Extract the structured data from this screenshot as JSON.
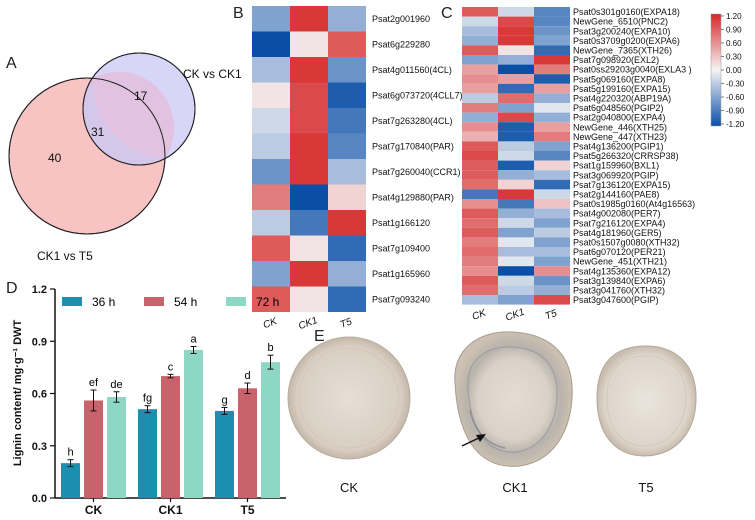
{
  "panels": {
    "A": "A",
    "B": "B",
    "C": "C",
    "D": "D",
    "E": "E"
  },
  "venn": {
    "set_top_label": "CK vs CK1",
    "set_bottom_label": "CK1 vs T5",
    "only_top": "17",
    "overlap": "31",
    "only_bottom": "40",
    "colors": {
      "top": "#c9c8f5",
      "bottom": "#f7c3c3",
      "overlap": "#e1c3e1"
    }
  },
  "heatmap_b": {
    "columns": [
      "CK",
      "CK1",
      "T5"
    ],
    "genes": [
      "Psat2g001960",
      "Psat6g229280",
      "Psat4g011560(4CL)",
      "Psat6g073720(4CLL7)",
      "Psat7g263280(4CL)",
      "Psat7g170840(PAR)",
      "Psat7g260040(CCR1)",
      "Psat4g129880(PAR)",
      "Psat1g166120",
      "Psat7g109400",
      "Psat1g165960",
      "Psat7g093240"
    ],
    "values": [
      [
        -0.6,
        1.1,
        -0.5
      ],
      [
        -1.2,
        0.1,
        0.9
      ],
      [
        -0.4,
        1.1,
        -0.7
      ],
      [
        0.1,
        1.0,
        -1.1
      ],
      [
        -0.2,
        1.0,
        -0.9
      ],
      [
        -0.3,
        1.1,
        -0.8
      ],
      [
        -0.7,
        1.1,
        -0.4
      ],
      [
        0.7,
        -1.2,
        0.2
      ],
      [
        -0.3,
        -0.9,
        1.1
      ],
      [
        0.9,
        0.1,
        -1.0
      ],
      [
        -0.6,
        1.1,
        -0.5
      ],
      [
        0.9,
        0.1,
        -1.0
      ]
    ]
  },
  "heatmap_c": {
    "columns": [
      "CK",
      "CK1",
      "T5"
    ],
    "genes": [
      "Psat0s301g0160(EXPA18)",
      "NewGene_6510(PNC2)",
      "Psat3g200240(EXPA10)",
      "Psat0s3709g0200(EXPA6)",
      "NewGene_7365(XTH26)",
      "Psat7g098920(EXL2)",
      "Psat0ss29203g0040(EXLA3 )",
      "Psat5g069160(EXPA8)",
      "Psat5g199160(EXPA15)",
      "Psat4g220320(ABP19A)",
      "Psat6g048560(PGIP2)",
      "Psat2g040800(EXPA4)",
      "NewGene_446(XTH25)",
      "NewGene_447(XTH23)",
      "Psat4g136200(PGIP1)",
      "Psat5g266320(CRRSP38)",
      "Psat1g159960(BXL1)",
      "Psat3g069920(PGIP)",
      "Psat7g136120(EXPA15)",
      "Psat2g144160(PAE8)",
      "Psat0s1985g0160(At4g16563)",
      "Psat4g002080(PER7)",
      "Psat7g216120(EXPA4)",
      "Psat4g181960(GER5)",
      "Psat0s1507g0080(XTH32)",
      "Psat6g070120(PER21)",
      "NewGene_451(XTH21)",
      "Psat4g135360(EXPA12)",
      "Psat3g139840(EXPA6)",
      "Psat3g041760(XTH32)",
      "Psat3g047600(PGIP)"
    ],
    "values": [
      [
        0.9,
        -0.2,
        -0.8
      ],
      [
        -0.2,
        1.0,
        -0.8
      ],
      [
        -0.4,
        1.1,
        -0.7
      ],
      [
        -0.5,
        1.1,
        -0.6
      ],
      [
        0.9,
        0.1,
        -1.0
      ],
      [
        -0.6,
        -0.5,
        1.1
      ],
      [
        0.5,
        -1.2,
        0.7
      ],
      [
        0.6,
        0.5,
        -1.1
      ],
      [
        0.5,
        -1.0,
        0.5
      ],
      [
        -0.3,
        0.8,
        -0.5
      ],
      [
        0.7,
        -0.6,
        -0.1
      ],
      [
        -0.5,
        1.0,
        -0.5
      ],
      [
        0.6,
        -1.1,
        0.5
      ],
      [
        0.4,
        -1.1,
        0.7
      ],
      [
        0.9,
        -0.3,
        -0.6
      ],
      [
        1.0,
        -0.2,
        -0.8
      ],
      [
        0.9,
        -1.1,
        0.2
      ],
      [
        0.9,
        -0.5,
        -0.4
      ],
      [
        0.8,
        0.2,
        -1.0
      ],
      [
        -0.9,
        1.1,
        -0.2
      ],
      [
        0.6,
        -0.9,
        0.3
      ],
      [
        0.9,
        -0.5,
        -0.4
      ],
      [
        0.8,
        -0.2,
        -0.6
      ],
      [
        0.9,
        -0.6,
        -0.3
      ],
      [
        0.7,
        -0.1,
        -0.6
      ],
      [
        0.8,
        -0.4,
        -0.4
      ],
      [
        0.7,
        -0.1,
        -0.6
      ],
      [
        0.6,
        -1.2,
        0.6
      ],
      [
        0.9,
        -0.2,
        -0.7
      ],
      [
        0.8,
        -0.3,
        -0.5
      ],
      [
        -0.4,
        -0.6,
        1.0
      ]
    ]
  },
  "colorbar": {
    "ticks": [
      "1.20",
      "0.90",
      "0.60",
      "0.30",
      "0.00",
      "-0.30",
      "-0.60",
      "-0.90",
      "-1.20"
    ],
    "colors": {
      "high": "#d62728",
      "mid": "#f5f5f5",
      "low": "#0a4ea8"
    }
  },
  "chart_data": {
    "type": "bar",
    "title": "",
    "categories": [
      "CK",
      "CK1",
      "T5"
    ],
    "ylabel": "Lignin content/ mg·g⁻¹ DWT",
    "xlabel": "",
    "ylim": [
      0,
      1.2
    ],
    "yticks": [
      "0.0",
      "0.3",
      "0.6",
      "0.9",
      "1.2"
    ],
    "series": [
      {
        "name": "36 h",
        "color": "#1b8fad",
        "values": [
          0.2,
          0.51,
          0.5
        ],
        "errors": [
          0.02,
          0.02,
          0.02
        ],
        "letters": [
          "h",
          "fg",
          "g"
        ]
      },
      {
        "name": "54 h",
        "color": "#c9636b",
        "values": [
          0.56,
          0.7,
          0.63
        ],
        "errors": [
          0.06,
          0.01,
          0.03
        ],
        "letters": [
          "ef",
          "c",
          "d"
        ]
      },
      {
        "name": "72 h",
        "color": "#8fd7c5",
        "values": [
          0.58,
          0.85,
          0.78
        ],
        "errors": [
          0.03,
          0.02,
          0.04
        ],
        "letters": [
          "de",
          "a",
          "b"
        ]
      }
    ]
  },
  "sections": {
    "labels": [
      "CK",
      "CK1",
      "T5"
    ]
  }
}
